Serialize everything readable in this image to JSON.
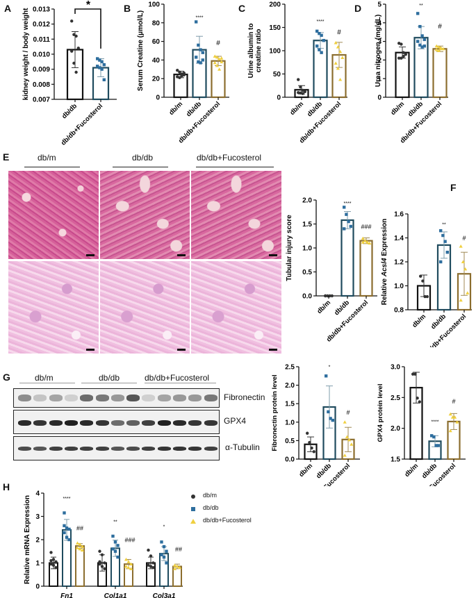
{
  "colors": {
    "dbm": "#111111",
    "dbdb": "#1f4b5e",
    "dbdb_marker": "#2e6e9e",
    "fuco": "#8b6d2e",
    "fuco_marker": "#f0d040"
  },
  "groups": [
    "db/m",
    "db/db",
    "db/db+Fucosterol"
  ],
  "panels": {
    "A": {
      "letter": "A",
      "ylabel": "kidney weight / body weight",
      "sig": "*"
    },
    "B": {
      "letter": "B",
      "ylabel": "Serum Creatine  (μmol/L)",
      "sig_dbdb": "****",
      "sig_fuco": "#"
    },
    "C": {
      "letter": "C",
      "ylabel_line1": "Urine albumin to",
      "ylabel_line2": "creatine ratio",
      "sig_dbdb": "****",
      "sig_fuco": "#"
    },
    "D": {
      "letter": "D",
      "ylabel": "Urea nitrogen (mg/dL)",
      "sig_dbdb": "**",
      "sig_fuco": "#"
    },
    "E": {
      "letter": "E",
      "ylabel": "Tubular injury score",
      "sig_dbdb": "****",
      "sig_fuco": "###"
    },
    "F": {
      "letter": "F",
      "ylabel_prefix": "Relative ",
      "ylabel_gene": "Acsl4",
      "ylabel_suffix": " Expression",
      "sig_dbdb": "**",
      "sig_fuco": "#"
    },
    "G": {
      "letter": "G",
      "blots": [
        "Fibronectin",
        "GPX4",
        "α-Tubulin"
      ]
    },
    "G_fn": {
      "ylabel": "Fibronectin protein level",
      "sig_dbdb": "*",
      "sig_fuco": "#"
    },
    "G_gpx4": {
      "ylabel": "GPX4 protein level",
      "sig_dbdb": "****",
      "sig_fuco": "#"
    },
    "H": {
      "letter": "H",
      "ylabel": "Relative mRNA Expression",
      "legend": [
        "db/m",
        "db/db",
        "db/db+Fucosterol"
      ]
    }
  },
  "chart_data": [
    {
      "id": "A",
      "type": "bar",
      "title": "",
      "xlabel": "",
      "ylabel": "kidney weight / body weight",
      "categories": [
        "db/db",
        "db/db+Fucosterol"
      ],
      "values": [
        0.0103,
        0.0091
      ],
      "sd": [
        0.0012,
        0.0006
      ],
      "ylim": [
        0.007,
        0.013
      ],
      "yticks": [
        "0.007",
        "0.008",
        "0.009",
        "0.010",
        "0.011",
        "0.012",
        "0.013"
      ],
      "points": [
        [
          0.0122,
          0.0113,
          0.0112,
          0.0104,
          0.0102,
          0.0094,
          0.0088
        ],
        [
          0.0097,
          0.0096,
          0.0095,
          0.0093,
          0.0092,
          0.0091,
          0.009,
          0.0083
        ]
      ],
      "annotations": [
        "*"
      ]
    },
    {
      "id": "B",
      "type": "bar",
      "ylabel": "Serum Creatine  (μmol/L)",
      "categories": [
        "db/m",
        "db/db",
        "db/db+Fucosterol"
      ],
      "values": [
        24.5,
        51,
        39
      ],
      "sd": [
        3.5,
        14.5,
        5
      ],
      "ylim": [
        0,
        100
      ],
      "yticks": [
        "0",
        "20",
        "40",
        "60",
        "80",
        "100"
      ],
      "points": [
        [
          29,
          27,
          25,
          24,
          22,
          21,
          23,
          26
        ],
        [
          81,
          56,
          51,
          48,
          43,
          38,
          37,
          40
        ],
        [
          44,
          43,
          41,
          38,
          37,
          34,
          30,
          42
        ]
      ],
      "annotations": [
        "****",
        "#"
      ]
    },
    {
      "id": "C",
      "type": "bar",
      "ylabel": "Urine albumin to creatine ratio",
      "categories": [
        "db/m",
        "db/db",
        "db/db+Fucosterol"
      ],
      "values": [
        16,
        122,
        91
      ],
      "sd": [
        9,
        17,
        27
      ],
      "ylim": [
        0,
        200
      ],
      "yticks": [
        "0",
        "50",
        "100",
        "150",
        "200"
      ],
      "points": [
        [
          38,
          22,
          15,
          12,
          10,
          9,
          8
        ],
        [
          142,
          137,
          133,
          122,
          110,
          102,
          96
        ],
        [
          117,
          108,
          98,
          85,
          73,
          62,
          38
        ]
      ],
      "annotations": [
        "****",
        "#"
      ]
    },
    {
      "id": "D",
      "type": "bar",
      "ylabel": "Urea nitrogen (mg/dL)",
      "categories": [
        "db/m",
        "db/db",
        "db/db+Fucosterol"
      ],
      "values": [
        2.4,
        3.2,
        2.6
      ],
      "sd": [
        0.3,
        0.6,
        0.15
      ],
      "ylim": [
        0,
        5
      ],
      "yticks": [
        "0",
        "1",
        "2",
        "3",
        "4",
        "5"
      ],
      "points": [
        [
          2.9,
          2.85,
          2.4,
          2.3,
          2.1,
          2.1,
          2.2
        ],
        [
          4.5,
          3.8,
          3.3,
          3.1,
          3.0,
          2.8,
          2.7,
          2.75
        ],
        [
          2.75,
          2.7,
          2.65,
          2.6,
          2.55,
          2.5,
          2.6
        ]
      ],
      "annotations": [
        "**",
        "#"
      ]
    },
    {
      "id": "E",
      "type": "bar",
      "ylabel": "Tubular injury score",
      "categories": [
        "db/m",
        "db/db",
        "db/db+Fucosterol"
      ],
      "values": [
        0.0,
        1.58,
        1.15
      ],
      "sd": [
        0,
        0.18,
        0.06
      ],
      "ylim": [
        0,
        2.0
      ],
      "yticks": [
        "0.0",
        "0.5",
        "1.0",
        "1.5",
        "2.0"
      ],
      "points": [
        [
          0,
          0,
          0,
          0,
          0
        ],
        [
          1.85,
          1.7,
          1.55,
          1.45,
          1.4
        ],
        [
          1.2,
          1.15,
          1.12,
          1.1,
          1.12
        ]
      ],
      "annotations": [
        "****",
        "###"
      ]
    },
    {
      "id": "F",
      "type": "bar",
      "ylabel": "Relative Acsl4 Expression",
      "categories": [
        "db/m",
        "db/db",
        "db/db+Fucosterol"
      ],
      "values": [
        1.0,
        1.34,
        1.1
      ],
      "sd": [
        0.09,
        0.11,
        0.18
      ],
      "ylim": [
        0.8,
        1.6
      ],
      "yticks": [
        "0.8",
        "1.0",
        "1.2",
        "1.4",
        "1.6"
      ],
      "points": [
        [
          1.08,
          1.04,
          0.91,
          0.91
        ],
        [
          1.46,
          1.42,
          1.37,
          1.28,
          1.2
        ],
        [
          1.33,
          1.2,
          1.14,
          0.94,
          0.88
        ]
      ],
      "annotations": [
        "**",
        "#"
      ]
    },
    {
      "id": "G_fn",
      "type": "bar",
      "ylabel": "Fibronectin protein level",
      "categories": [
        "db/m",
        "db/db",
        "db/db+Fucosterol"
      ],
      "values": [
        0.4,
        1.41,
        0.53
      ],
      "sd": [
        0.2,
        0.57,
        0.33
      ],
      "ylim": [
        0,
        2.5
      ],
      "yticks": [
        "0.0",
        "0.5",
        "1.0",
        "1.5",
        "2.0",
        "2.5"
      ],
      "points": [
        [
          0.7,
          0.45,
          0.3,
          0.2
        ],
        [
          2.25,
          1.28,
          1.1,
          1.05
        ],
        [
          1.0,
          0.6,
          0.52,
          0.4,
          0.1
        ]
      ],
      "annotations": [
        "*",
        "#"
      ]
    },
    {
      "id": "G_gpx4",
      "type": "bar",
      "ylabel": "GPX4 protein level",
      "categories": [
        "db/m",
        "db/db",
        "db/db+Fucosterol"
      ],
      "values": [
        2.66,
        1.79,
        2.11
      ],
      "sd": [
        0.25,
        0.09,
        0.13
      ],
      "ylim": [
        1.5,
        3.0
      ],
      "yticks": [
        "1.5",
        "2.0",
        "2.5",
        "3.0"
      ],
      "points": [
        [
          2.88,
          2.88,
          2.49,
          2.43
        ],
        [
          1.88,
          1.86,
          1.72,
          1.72
        ],
        [
          2.23,
          2.18,
          2.18,
          2.1,
          1.96
        ]
      ],
      "annotations": [
        "****",
        "#"
      ]
    },
    {
      "id": "H",
      "type": "bar",
      "ylabel": "Relative mRNA Expression",
      "legend_position": "top-right",
      "categories": [
        "Fn1",
        "Col1a1",
        "Col3a1"
      ],
      "series": [
        {
          "name": "db/m",
          "values": [
            1.0,
            1.0,
            1.0
          ],
          "sd": [
            0.25,
            0.35,
            0.25
          ]
        },
        {
          "name": "db/db",
          "values": [
            2.42,
            1.63,
            1.4
          ],
          "sd": [
            0.45,
            0.35,
            0.3
          ]
        },
        {
          "name": "db/db+Fucosterol",
          "values": [
            1.73,
            0.95,
            0.85
          ],
          "sd": [
            0.1,
            0.2,
            0.1
          ]
        }
      ],
      "ylim": [
        0,
        4
      ],
      "yticks": [
        "0",
        "1",
        "2",
        "3",
        "4"
      ],
      "annotations": [
        "****",
        "##",
        "**",
        "###",
        "*",
        "##"
      ]
    }
  ]
}
